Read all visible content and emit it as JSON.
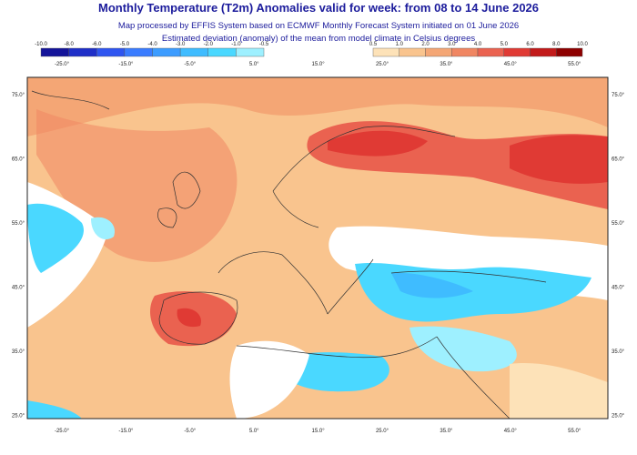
{
  "header": {
    "title": "Monthly Temperature (T2m) Anomalies valid for week: from 08 to 14 June 2026",
    "subtitle_1": "Map processed by EFFIS System based on ECMWF Monthly Forecast System initiated on 01 June 2026",
    "subtitle_2": "Estimated deviation (anomaly) of the mean from model climate in Celsius degrees"
  },
  "legend": {
    "negative": {
      "labels": [
        "-10.0",
        "-8.0",
        "-6.0",
        "-5.0",
        "-4.0",
        "-3.0",
        "-2.0",
        "-1.0",
        "-0.5"
      ],
      "colors": [
        "#14149a",
        "#1f2fc8",
        "#2f55f0",
        "#3a7cff",
        "#3c9cff",
        "#3fbcff",
        "#4ad8ff",
        "#9ef0ff"
      ]
    },
    "positive": {
      "labels": [
        "0.5",
        "1.0",
        "2.0",
        "3.0",
        "4.0",
        "5.0",
        "6.0",
        "8.0",
        "10.0"
      ],
      "colors": [
        "#fde2b8",
        "#f9c48e",
        "#f4a675",
        "#f08662",
        "#ea6250",
        "#e03a34",
        "#c21a1a",
        "#8e0000"
      ]
    }
  },
  "map": {
    "longitude_labels": [
      "-25.0°",
      "-15.0°",
      "-5.0°",
      "5.0°",
      "15.0°",
      "25.0°",
      "35.0°",
      "45.0°",
      "55.0°"
    ],
    "latitude_labels": [
      "75.0°",
      "65.0°",
      "55.0°",
      "45.0°",
      "35.0°",
      "25.0°"
    ]
  }
}
